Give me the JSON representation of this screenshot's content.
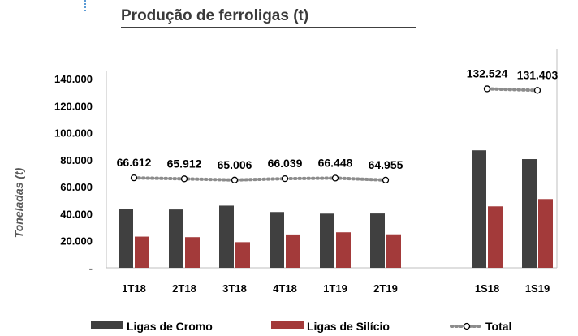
{
  "title": "Produção de ferroligas (t)",
  "chart_data": {
    "type": "bar",
    "ylabel": "Toneladas (t)",
    "ylim": [
      0,
      140000
    ],
    "yticks": [
      {
        "value": 0,
        "label": "-"
      },
      {
        "value": 20000,
        "label": "20.000"
      },
      {
        "value": 40000,
        "label": "40.000"
      },
      {
        "value": 60000,
        "label": "60.000"
      },
      {
        "value": 80000,
        "label": "80.000"
      },
      {
        "value": 100000,
        "label": "100.000"
      },
      {
        "value": 120000,
        "label": "120.000"
      },
      {
        "value": 140000,
        "label": "140.000"
      }
    ],
    "groups": [
      {
        "categories": [
          "1T18",
          "2T18",
          "3T18",
          "4T18",
          "1T19",
          "2T19"
        ],
        "ligas_cromo": [
          43500,
          43200,
          46000,
          41300,
          40100,
          40200
        ],
        "ligas_silicio": [
          23100,
          22700,
          19000,
          24700,
          26300,
          24800
        ],
        "total": [
          66612,
          65912,
          65006,
          66039,
          66448,
          64955
        ],
        "total_labels": [
          "66.612",
          "65.912",
          "65.006",
          "66.039",
          "66.448",
          "64.955"
        ]
      },
      {
        "categories": [
          "1S18",
          "1S19"
        ],
        "ligas_cromo": [
          87000,
          80500
        ],
        "ligas_silicio": [
          45500,
          50900
        ],
        "total": [
          132524,
          131403
        ],
        "total_labels": [
          "132.524",
          "131.403"
        ]
      }
    ],
    "series": [
      {
        "name": "Ligas de Cromo",
        "color": "#404040"
      },
      {
        "name": "Ligas de Silício",
        "color": "#a33a3a"
      },
      {
        "name": "Total",
        "color": "#8c8c8c"
      }
    ],
    "legend_position": "bottom",
    "grid": false
  }
}
